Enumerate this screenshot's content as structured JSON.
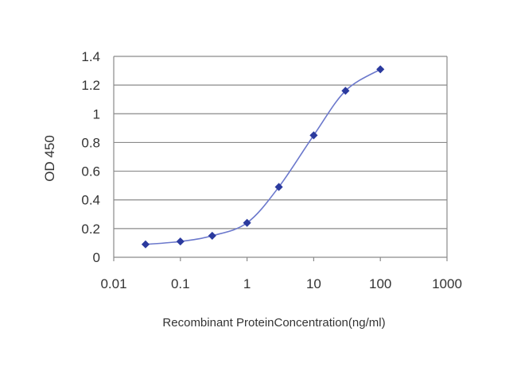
{
  "chart_data": {
    "type": "line",
    "title": "",
    "xlabel": "Recombinant ProteinConcentration(ng/ml)",
    "ylabel": "OD 450",
    "xscale": "log",
    "xlim": [
      0.01,
      1000
    ],
    "ylim": [
      0,
      1.4
    ],
    "x_ticks": [
      0.01,
      0.1,
      1,
      10,
      100,
      1000
    ],
    "x_tick_labels": [
      "0.01",
      "0.1",
      "1",
      "10",
      "100",
      "1000"
    ],
    "y_ticks": [
      0,
      0.2,
      0.4,
      0.6,
      0.8,
      1,
      1.2,
      1.4
    ],
    "y_tick_labels": [
      "0",
      "0.2",
      "0.4",
      "0.6",
      "0.8",
      "1",
      "1.2",
      "1.4"
    ],
    "grid": "horizontal",
    "legend": "none",
    "series": [
      {
        "color": "#2b3a9e",
        "marker": "diamond",
        "x": [
          0.03,
          0.1,
          0.3,
          1,
          3,
          10,
          30,
          100
        ],
        "y": [
          0.09,
          0.11,
          0.15,
          0.24,
          0.49,
          0.85,
          1.16,
          1.31
        ]
      }
    ]
  }
}
